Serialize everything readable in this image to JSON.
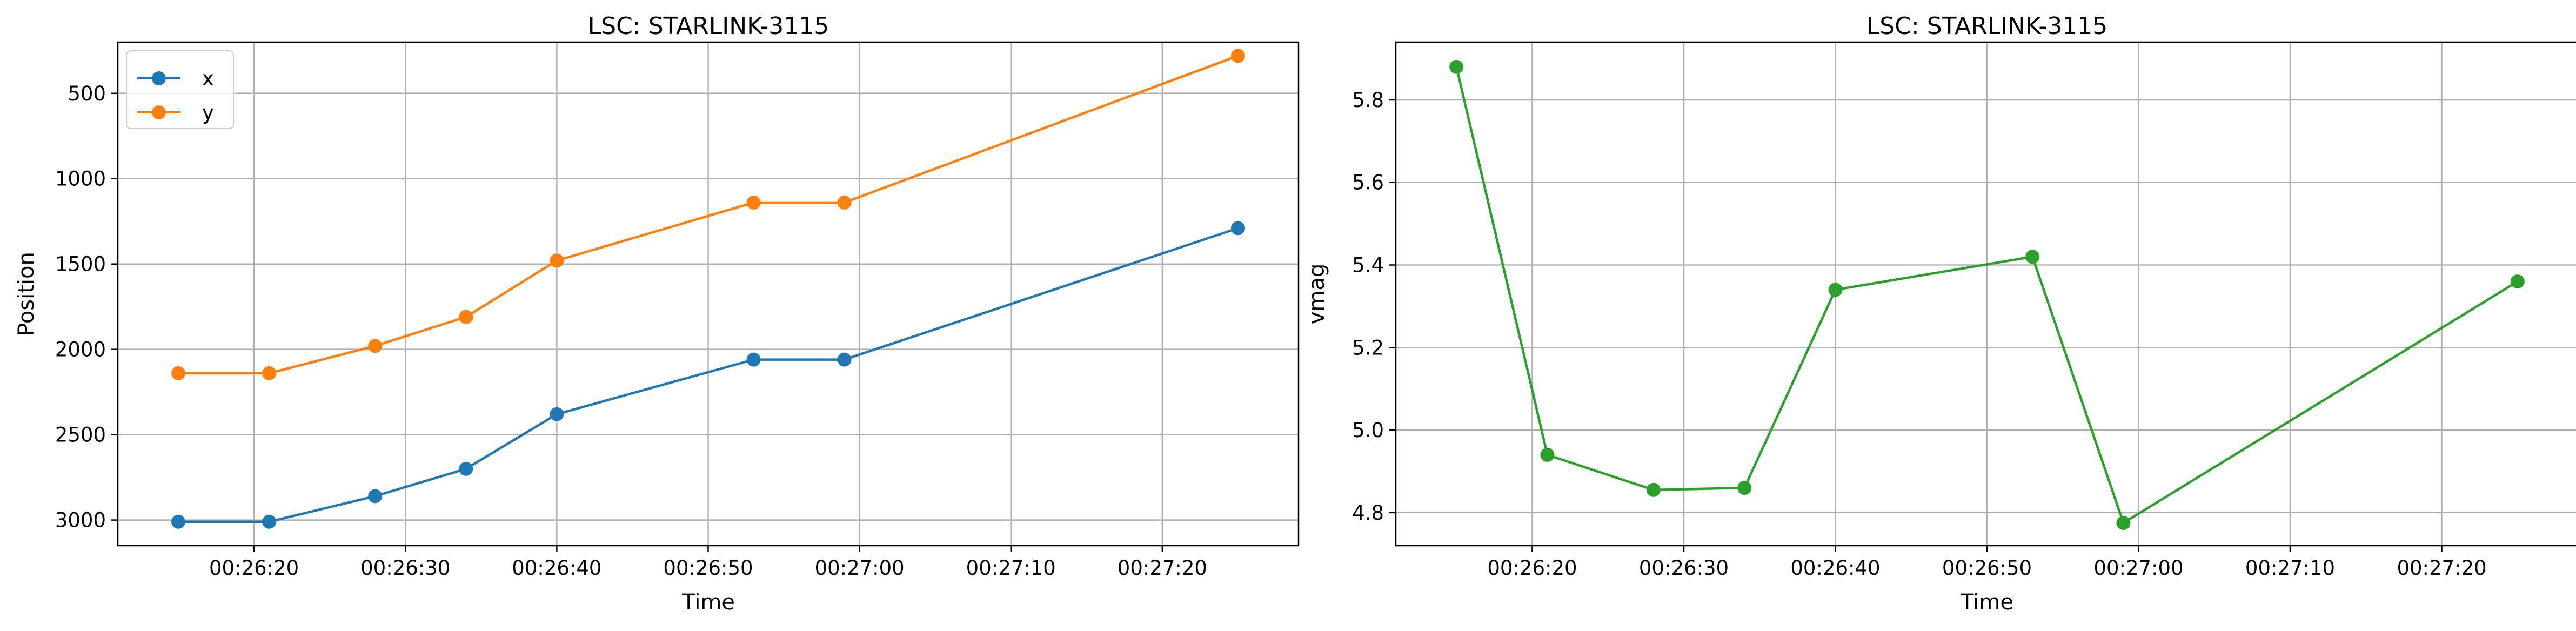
{
  "figure": {
    "background": "#ffffff",
    "grid_color": "#b0b0b0"
  },
  "chart_data": [
    {
      "type": "line",
      "title": "LSC: STARLINK-3115",
      "xlabel": "Time",
      "ylabel": "Position",
      "y_inverted": true,
      "grid": true,
      "legend_position": "upper-left",
      "x": [
        "00:26:15",
        "00:26:21",
        "00:26:28",
        "00:26:34",
        "00:26:40",
        "00:26:53",
        "00:26:59",
        "00:27:25"
      ],
      "x_range": [
        "00:26:11",
        "00:27:29"
      ],
      "x_ticks": [
        "00:26:20",
        "00:26:30",
        "00:26:40",
        "00:26:50",
        "00:27:00",
        "00:27:10",
        "00:27:20"
      ],
      "ylim": [
        3150,
        200
      ],
      "y_ticks": [
        500,
        1000,
        1500,
        2000,
        2500,
        3000
      ],
      "series": [
        {
          "name": "x",
          "color": "#1f77b4",
          "values": [
            3010,
            3010,
            2860,
            2700,
            2380,
            2060,
            2060,
            1290
          ]
        },
        {
          "name": "y",
          "color": "#ff7f0e",
          "values": [
            2140,
            2140,
            1980,
            1810,
            1480,
            1140,
            1140,
            280
          ]
        }
      ]
    },
    {
      "type": "line",
      "title": "LSC: STARLINK-3115",
      "xlabel": "Time",
      "ylabel": "vmag",
      "grid": true,
      "x": [
        "00:26:15",
        "00:26:21",
        "00:26:28",
        "00:26:34",
        "00:26:40",
        "00:26:53",
        "00:26:59",
        "00:27:25"
      ],
      "x_range": [
        "00:26:11",
        "00:27:29"
      ],
      "x_ticks": [
        "00:26:20",
        "00:26:30",
        "00:26:40",
        "00:26:50",
        "00:27:00",
        "00:27:10",
        "00:27:20"
      ],
      "ylim": [
        4.72,
        5.94
      ],
      "y_ticks": [
        "4.8",
        "5.0",
        "5.2",
        "5.4",
        "5.6",
        "5.8"
      ],
      "series": [
        {
          "color": "#2ca02c",
          "values": [
            5.88,
            4.94,
            4.855,
            4.86,
            5.34,
            5.42,
            4.775,
            5.36
          ]
        }
      ]
    }
  ]
}
